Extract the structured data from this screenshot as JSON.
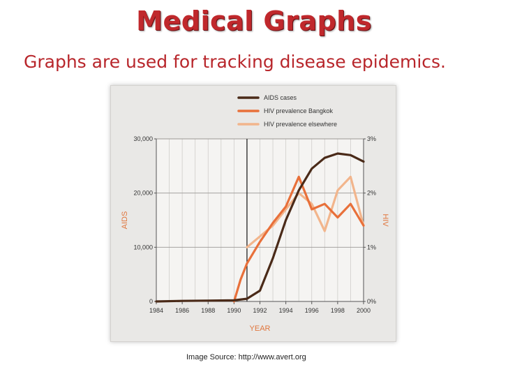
{
  "slide": {
    "title": "Medical Graphs",
    "subtitle": "Graphs are used for tracking disease epidemics.",
    "caption": "Image Source: http://www.avert.org"
  },
  "colors": {
    "title": "#c0282c",
    "aids": "#4a2a18",
    "hiv_bangkok": "#e8703a",
    "hiv_elsewhere": "#f2b58c",
    "axis_label": "#e0763e"
  },
  "chart_data": {
    "type": "line",
    "xlabel": "YEAR",
    "ylabel_left": "AIDS",
    "ylabel_right": "HIV",
    "xlim": [
      1984,
      2000
    ],
    "ylim_left": [
      0,
      30000
    ],
    "ylim_right": [
      0,
      3
    ],
    "x_ticks": [
      "1984",
      "1986",
      "1988",
      "1990",
      "1992",
      "1994",
      "1996",
      "1998",
      "2000"
    ],
    "y_left_ticks": [
      "0",
      "10,000",
      "20,000",
      "30,000"
    ],
    "y_right_ticks": [
      "0%",
      "1%",
      "2%",
      "3%"
    ],
    "grid": true,
    "legend_position": "top-right",
    "series": [
      {
        "name": "AIDS cases",
        "axis": "left",
        "color": "#4a2a18",
        "x": [
          1984,
          1986,
          1988,
          1990,
          1991,
          1992,
          1993,
          1994,
          1995,
          1996,
          1997,
          1998,
          1999,
          2000
        ],
        "y": [
          0,
          100,
          150,
          200,
          500,
          2000,
          8000,
          15000,
          20500,
          24500,
          26500,
          27300,
          27000,
          25800
        ]
      },
      {
        "name": "HIV prevalence Bangkok",
        "axis": "right",
        "color": "#e8703a",
        "x": [
          1990,
          1990.5,
          1991,
          1992,
          1993,
          1994,
          1995,
          1996,
          1997,
          1998,
          1999,
          2000
        ],
        "y": [
          0,
          0.4,
          0.7,
          1.1,
          1.45,
          1.75,
          2.3,
          1.7,
          1.8,
          1.55,
          1.8,
          1.4
        ]
      },
      {
        "name": "HIV prevalence elsewhere",
        "axis": "right",
        "color": "#f2b58c",
        "x": [
          1991,
          1992,
          1993,
          1994,
          1995,
          1996,
          1997,
          1998,
          1999,
          2000
        ],
        "y": [
          1.0,
          1.2,
          1.4,
          1.7,
          2.0,
          1.8,
          1.3,
          2.05,
          2.3,
          1.4
        ]
      }
    ]
  }
}
